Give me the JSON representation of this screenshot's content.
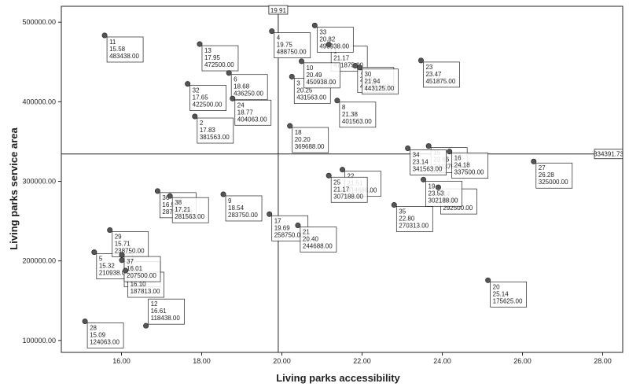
{
  "chart_data": {
    "type": "scatter",
    "xlabel": "Living parks accessibility",
    "ylabel": "Living parks service area",
    "xlim": [
      14.5,
      28.5
    ],
    "ylim": [
      85000,
      520000
    ],
    "x_ticks": [
      "16.00",
      "18.00",
      "20.00",
      "22.00",
      "24.00",
      "26.00",
      "28.00"
    ],
    "x_tick_values": [
      16,
      18,
      20,
      22,
      24,
      26,
      28
    ],
    "y_ticks": [
      "100000.00",
      "200000.00",
      "300000.00",
      "400000.00",
      "500000.00"
    ],
    "y_tick_values": [
      100000,
      200000,
      300000,
      400000,
      500000
    ],
    "grid": false,
    "reference_lines": {
      "x": {
        "value": 19.91,
        "label": "19.91"
      },
      "y": {
        "value": 334391.73,
        "label": "334391.73"
      }
    },
    "points": [
      {
        "id": "1",
        "x": 21.17,
        "y": 471875.0,
        "x_label": "21.17",
        "y_label": "471875.00"
      },
      {
        "id": "2",
        "x": 17.83,
        "y": 381563.0,
        "x_label": "17.83",
        "y_label": "381563.00"
      },
      {
        "id": "3",
        "x": 20.25,
        "y": 431563.0,
        "x_label": "20.25",
        "y_label": "431563.00"
      },
      {
        "id": "4",
        "x": 19.75,
        "y": 488750.0,
        "x_label": "19.75",
        "y_label": "488750.00"
      },
      {
        "id": "5",
        "x": 15.32,
        "y": 210938.0,
        "x_label": "15.32",
        "y_label": "210938.00"
      },
      {
        "id": "6",
        "x": 18.68,
        "y": 436250.0,
        "x_label": "18.68",
        "y_label": "436250.00"
      },
      {
        "id": "7",
        "x": 21.83,
        "y": 445313.0,
        "x_label": "21.83",
        "y_label": "445313.00"
      },
      {
        "id": "8",
        "x": 21.38,
        "y": 401563.0,
        "x_label": "21.38",
        "y_label": "401563.00"
      },
      {
        "id": "9",
        "x": 18.54,
        "y": 283750.0,
        "x_label": "18.54",
        "y_label": "283750.00"
      },
      {
        "id": "10",
        "x": 20.49,
        "y": 450938.0,
        "x_label": "20.49",
        "y_label": "450938.00"
      },
      {
        "id": "11",
        "x": 15.58,
        "y": 483438.0,
        "x_label": "15.58",
        "y_label": "483438.00"
      },
      {
        "id": "12",
        "x": 16.61,
        "y": 118438.0,
        "x_label": "16.61",
        "y_label": "118438.00"
      },
      {
        "id": "13",
        "x": 17.95,
        "y": 472500.0,
        "x_label": "17.95",
        "y_label": "472500.00"
      },
      {
        "id": "14",
        "x": 23.9,
        "y": 292500.0,
        "x_label": "23.90",
        "y_label": "292500.00"
      },
      {
        "id": "15",
        "x": 23.66,
        "y": 344375.0,
        "x_label": "23.66",
        "y_label": "344375.00"
      },
      {
        "id": "16",
        "x": 24.18,
        "y": 337500.0,
        "x_label": "24.18",
        "y_label": "337500.00"
      },
      {
        "id": "17",
        "x": 19.69,
        "y": 258750.0,
        "x_label": "19.69",
        "y_label": "258750.00"
      },
      {
        "id": "18",
        "x": 20.2,
        "y": 369688.0,
        "x_label": "20.20",
        "y_label": "369688.00"
      },
      {
        "id": "19",
        "x": 23.53,
        "y": 302188.0,
        "x_label": "23.53",
        "y_label": "302188.00"
      },
      {
        "id": "20",
        "x": 25.14,
        "y": 175625.0,
        "x_label": "25.14",
        "y_label": "175625.00"
      },
      {
        "id": "21",
        "x": 20.4,
        "y": 244688.0,
        "x_label": "20.40",
        "y_label": "244688.00"
      },
      {
        "id": "22",
        "x": 21.51,
        "y": 314688.0,
        "x_label": "21.51",
        "y_label": "314688.00"
      },
      {
        "id": "23",
        "x": 23.47,
        "y": 451875.0,
        "x_label": "23.47",
        "y_label": "451875.00"
      },
      {
        "id": "24",
        "x": 18.77,
        "y": 404063.0,
        "x_label": "18.77",
        "y_label": "404063.00"
      },
      {
        "id": "25",
        "x": 21.17,
        "y": 307188.0,
        "x_label": "21.17",
        "y_label": "307188.00"
      },
      {
        "id": "26",
        "x": 16.01,
        "y": 200938.0,
        "x_label": "16.01",
        "y_label": "200938.00"
      },
      {
        "id": "27",
        "x": 26.28,
        "y": 325000.0,
        "x_label": "26.28",
        "y_label": "325000.00"
      },
      {
        "id": "28",
        "x": 15.09,
        "y": 124063.0,
        "x_label": "15.09",
        "y_label": "124063.00"
      },
      {
        "id": "29",
        "x": 15.71,
        "y": 238750.0,
        "x_label": "15.71",
        "y_label": "238750.00"
      },
      {
        "id": "30",
        "x": 21.94,
        "y": 443125.0,
        "x_label": "21.94",
        "y_label": "443125.00"
      },
      {
        "id": "31",
        "x": 16.1,
        "y": 187813.0,
        "x_label": "16.10",
        "y_label": "187813.00"
      },
      {
        "id": "32",
        "x": 17.65,
        "y": 422500.0,
        "x_label": "17.65",
        "y_label": "422500.00"
      },
      {
        "id": "33",
        "x": 20.82,
        "y": 495938.0,
        "x_label": "20.82",
        "y_label": "495938.00"
      },
      {
        "id": "34",
        "x": 23.14,
        "y": 341563.0,
        "x_label": "23.14",
        "y_label": "341563.00"
      },
      {
        "id": "35",
        "x": 22.8,
        "y": 270313.0,
        "x_label": "22.80",
        "y_label": "270313.00"
      },
      {
        "id": "36",
        "x": 16.9,
        "y": 287813.0,
        "x_label": "16.90",
        "y_label": "287813.00"
      },
      {
        "id": "37",
        "x": 16.01,
        "y": 207500.0,
        "x_label": "16.01",
        "y_label": "207500.00"
      },
      {
        "id": "38",
        "x": 17.21,
        "y": 281563.0,
        "x_label": "17.21",
        "y_label": "281563.00"
      }
    ],
    "colors": {
      "marker": "#555555",
      "marker_edge": "#222222",
      "axis": "#222222"
    }
  }
}
